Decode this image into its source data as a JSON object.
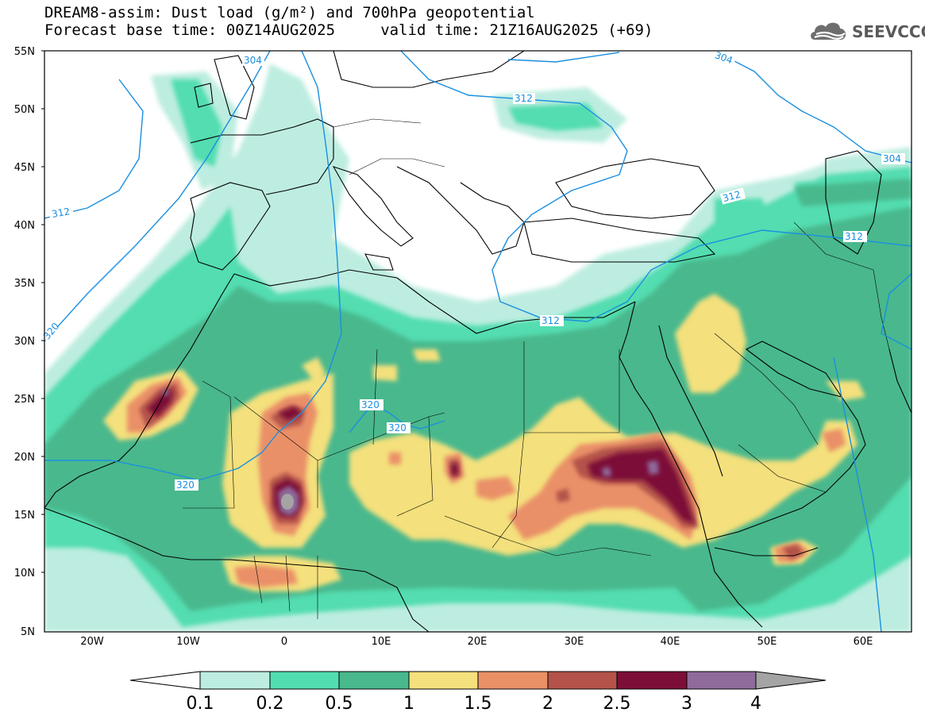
{
  "header": {
    "title_line1": "DREAM8-assim: Dust load (g/m²) and 700hPa geopotential",
    "title_line2": "Forecast base time: 00Z14AUG2025     valid time: 21Z16AUG2025 (+69)",
    "logo_text": "SEEVCCC",
    "logo_icon": "cloud-icon"
  },
  "axes": {
    "lat_labels": [
      "55N",
      "50N",
      "45N",
      "40N",
      "35N",
      "30N",
      "25N",
      "20N",
      "15N",
      "10N",
      "5N"
    ],
    "lon_labels": [
      "20W",
      "10W",
      "0",
      "10E",
      "20E",
      "30E",
      "40E",
      "50E",
      "60E"
    ]
  },
  "contour_labels": [
    "304",
    "304",
    "304",
    "312",
    "312",
    "312",
    "312",
    "312",
    "320",
    "320",
    "320",
    "320"
  ],
  "colorbar": {
    "labels": [
      "0.1",
      "0.2",
      "0.5",
      "1",
      "1.5",
      "2",
      "2.5",
      "3",
      "4"
    ],
    "colors": [
      "#ffffff",
      "#bdede0",
      "#52ddb0",
      "#49b88d",
      "#f4e07c",
      "#ea9067",
      "#b3534a",
      "#7c0f37",
      "#8f6b9c",
      "#a4a4a4"
    ]
  },
  "colors": {
    "contour": "#1a8fe0",
    "coast": "#000000"
  }
}
